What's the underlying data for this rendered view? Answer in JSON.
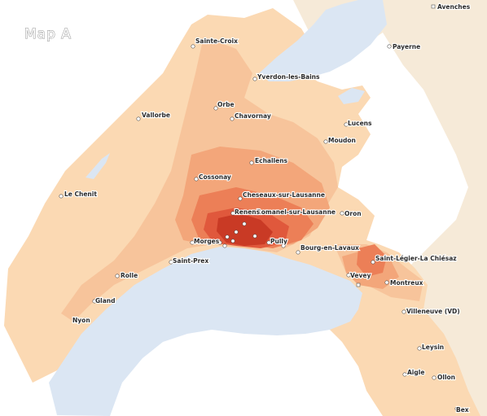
{
  "map": {
    "title": "Map A",
    "colors": {
      "lake": "#dbe6f3",
      "outside": "#f6ead8",
      "level1": "#fbd9b3",
      "level2": "#f7c49b",
      "level3": "#f3a67a",
      "level4": "#ec7f57",
      "level5": "#e0583c",
      "level6": "#c93a25"
    },
    "places": [
      {
        "name": "Avenches",
        "icon": "place-marker-icon"
      },
      {
        "name": "Payerne",
        "icon": "place-marker-icon"
      },
      {
        "name": "Sainte-Croix",
        "icon": "place-marker-icon"
      },
      {
        "name": "Yverdon-les-Bains",
        "icon": "place-marker-icon"
      },
      {
        "name": "Orbe",
        "icon": "place-marker-icon"
      },
      {
        "name": "Vallorbe",
        "icon": "place-marker-icon"
      },
      {
        "name": "Chavornay",
        "icon": "place-marker-icon"
      },
      {
        "name": "Lucens",
        "icon": "place-marker-icon"
      },
      {
        "name": "Moudon",
        "icon": "place-marker-icon"
      },
      {
        "name": "Echallens",
        "icon": "place-marker-icon"
      },
      {
        "name": "Cossonay",
        "icon": "place-marker-icon"
      },
      {
        "name": "Le Chenit",
        "icon": "place-marker-icon"
      },
      {
        "name": "Cheseaux-sur-Lausanne",
        "icon": "place-marker-icon"
      },
      {
        "name": "Romanel-sur-Lausanne",
        "icon": "place-marker-icon"
      },
      {
        "name": "Renens",
        "icon": "place-marker-icon"
      },
      {
        "name": "Oron",
        "icon": "place-marker-icon"
      },
      {
        "name": "Morges",
        "icon": "place-marker-icon"
      },
      {
        "name": "Pully",
        "icon": "place-marker-icon"
      },
      {
        "name": "Bourg-en-Lavaux",
        "icon": "place-marker-icon"
      },
      {
        "name": "Saint-Prex",
        "icon": "place-marker-icon"
      },
      {
        "name": "Saint-Légier-La Chiésaz",
        "icon": "place-marker-icon"
      },
      {
        "name": "Rolle",
        "icon": "place-marker-icon"
      },
      {
        "name": "Vevey",
        "icon": "place-marker-icon"
      },
      {
        "name": "Montreux",
        "icon": "place-marker-icon"
      },
      {
        "name": "Gland",
        "icon": "place-marker-icon"
      },
      {
        "name": "Nyon",
        "icon": "place-marker-icon"
      },
      {
        "name": "Villeneuve (VD)",
        "icon": "place-marker-icon"
      },
      {
        "name": "Leysin",
        "icon": "place-marker-icon"
      },
      {
        "name": "Aigle",
        "icon": "place-marker-icon"
      },
      {
        "name": "Ollon",
        "icon": "place-marker-icon"
      },
      {
        "name": "Bex",
        "icon": "place-marker-icon"
      }
    ]
  }
}
